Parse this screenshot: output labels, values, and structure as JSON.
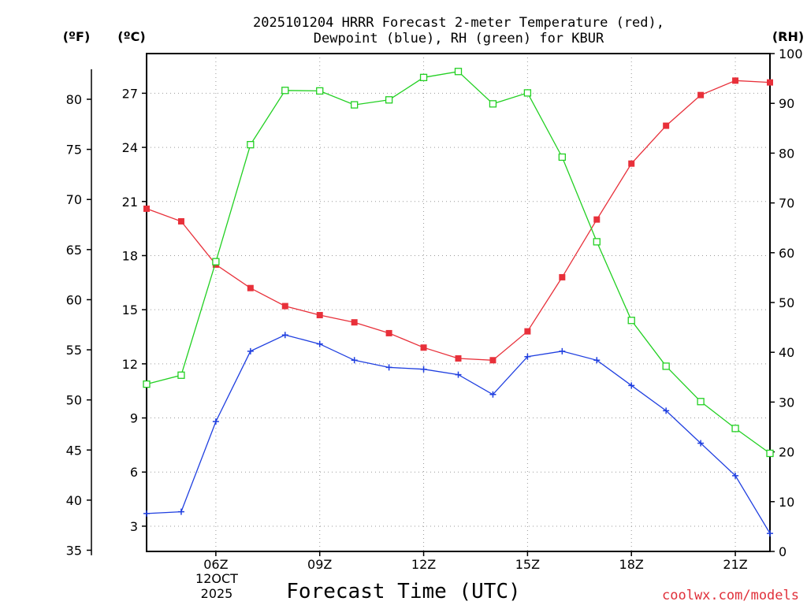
{
  "chart_data": {
    "type": "line",
    "title_line1": "2025101204 HRRR Forecast 2-meter Temperature (red),",
    "title_line2": "Dewpoint (blue), RH (green) for KBUR",
    "xlabel": "Forecast Time (UTC)",
    "credit": "coolwx.com/models",
    "unit_f": "(ºF)",
    "unit_c": "(ºC)",
    "unit_rh": "(RH)",
    "x_hours": [
      4,
      5,
      6,
      7,
      8,
      9,
      10,
      11,
      12,
      13,
      14,
      15,
      16,
      17,
      18,
      19,
      20,
      21,
      22
    ],
    "x_ticks": [
      {
        "hour": 6,
        "label": "06Z"
      },
      {
        "hour": 9,
        "label": "09Z"
      },
      {
        "hour": 12,
        "label": "12Z"
      },
      {
        "hour": 15,
        "label": "15Z"
      },
      {
        "hour": 18,
        "label": "18Z"
      },
      {
        "hour": 21,
        "label": "21Z"
      }
    ],
    "date_label_line1": "12OCT",
    "date_label_line2": "2025",
    "xlim": [
      4,
      22
    ],
    "celsius_axis": {
      "ylim": [
        1.6,
        29.2
      ],
      "ticks": [
        3,
        6,
        9,
        12,
        15,
        18,
        21,
        24,
        27
      ]
    },
    "fahrenheit_axis": {
      "ticks": [
        35,
        40,
        45,
        50,
        55,
        60,
        65,
        70,
        75,
        80
      ]
    },
    "rh_axis": {
      "ylim": [
        0,
        100
      ],
      "ticks": [
        0,
        10,
        20,
        30,
        40,
        50,
        60,
        70,
        80,
        90,
        100
      ]
    },
    "series": [
      {
        "name": "Temperature",
        "units": "C",
        "color": "#e8303a",
        "marker": "filled-square",
        "values": [
          20.6,
          19.9,
          17.5,
          16.2,
          15.2,
          14.7,
          14.3,
          13.7,
          12.9,
          12.3,
          12.2,
          13.8,
          16.8,
          20.0,
          23.1,
          25.2,
          26.9,
          27.7,
          27.6
        ]
      },
      {
        "name": "Dewpoint",
        "units": "C",
        "color": "#1f3fe0",
        "marker": "plus",
        "values": [
          3.7,
          3.8,
          8.8,
          12.7,
          13.6,
          13.1,
          12.2,
          11.8,
          11.7,
          11.4,
          10.3,
          12.4,
          12.7,
          12.2,
          10.8,
          9.4,
          7.6,
          5.8,
          2.6
        ]
      },
      {
        "name": "RH",
        "units": "%",
        "color": "#22d022",
        "marker": "open-square",
        "values": [
          33.6,
          35.4,
          58.2,
          81.7,
          92.6,
          92.5,
          89.7,
          90.7,
          95.2,
          96.4,
          89.9,
          92.1,
          79.2,
          62.2,
          46.4,
          37.2,
          30.1,
          24.7,
          19.7
        ]
      }
    ]
  }
}
